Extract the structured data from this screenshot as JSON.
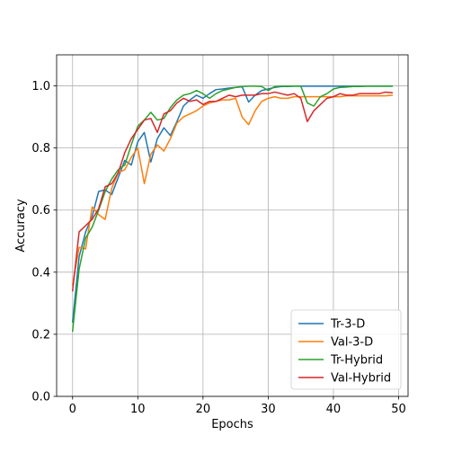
{
  "chart_data": {
    "type": "line",
    "title": "",
    "xlabel": "Epochs",
    "ylabel": "Accuracy",
    "xlim": [
      -2.45,
      51.45
    ],
    "ylim": [
      0.0,
      1.1
    ],
    "xticks": [
      "0",
      "10",
      "20",
      "30",
      "40",
      "50"
    ],
    "yticks": [
      "0.0",
      "0.2",
      "0.4",
      "0.6",
      "0.8",
      "1.0"
    ],
    "grid": true,
    "legend_position": "lower-right",
    "x": [
      0,
      1,
      2,
      3,
      4,
      5,
      6,
      7,
      8,
      9,
      10,
      11,
      12,
      13,
      14,
      15,
      16,
      17,
      18,
      19,
      20,
      21,
      22,
      23,
      24,
      25,
      26,
      27,
      28,
      29,
      30,
      31,
      32,
      33,
      34,
      35,
      36,
      37,
      38,
      39,
      40,
      41,
      42,
      43,
      44,
      45,
      46,
      47,
      48,
      49
    ],
    "series": [
      {
        "name": "Tr-3-D",
        "color": "#1f77b4",
        "values": [
          0.24,
          0.45,
          0.53,
          0.58,
          0.66,
          0.665,
          0.65,
          0.705,
          0.76,
          0.745,
          0.82,
          0.85,
          0.755,
          0.83,
          0.865,
          0.84,
          0.885,
          0.935,
          0.955,
          0.97,
          0.96,
          0.975,
          0.988,
          0.99,
          0.993,
          0.995,
          0.997,
          0.948,
          0.97,
          0.985,
          0.99,
          0.995,
          0.998,
          0.998,
          0.999,
          0.999,
          0.999,
          0.999,
          0.999,
          0.999,
          0.999,
          0.999,
          0.999,
          0.999,
          0.999,
          0.999,
          0.999,
          0.999,
          0.999,
          0.999
        ]
      },
      {
        "name": "Val-3-D",
        "color": "#ff7f0e",
        "values": [
          0.36,
          0.48,
          0.475,
          0.61,
          0.585,
          0.57,
          0.67,
          0.72,
          0.73,
          0.77,
          0.8,
          0.685,
          0.78,
          0.81,
          0.79,
          0.83,
          0.88,
          0.9,
          0.91,
          0.92,
          0.935,
          0.945,
          0.95,
          0.955,
          0.955,
          0.96,
          0.9,
          0.875,
          0.92,
          0.95,
          0.96,
          0.965,
          0.96,
          0.96,
          0.965,
          0.965,
          0.965,
          0.965,
          0.965,
          0.965,
          0.965,
          0.965,
          0.968,
          0.968,
          0.968,
          0.968,
          0.968,
          0.968,
          0.968,
          0.97
        ]
      },
      {
        "name": "Tr-Hybrid",
        "color": "#2ca02c",
        "values": [
          0.21,
          0.41,
          0.51,
          0.545,
          0.6,
          0.66,
          0.7,
          0.73,
          0.745,
          0.81,
          0.87,
          0.89,
          0.915,
          0.89,
          0.895,
          0.93,
          0.955,
          0.97,
          0.975,
          0.985,
          0.975,
          0.96,
          0.975,
          0.985,
          0.99,
          0.995,
          0.998,
          0.999,
          0.999,
          0.998,
          0.985,
          0.998,
          0.999,
          0.999,
          0.999,
          0.999,
          0.945,
          0.935,
          0.965,
          0.975,
          0.99,
          0.995,
          0.996,
          0.998,
          0.998,
          0.999,
          0.999,
          0.999,
          0.999,
          0.999
        ]
      },
      {
        "name": "Val-Hybrid",
        "color": "#d62728",
        "values": [
          0.34,
          0.53,
          0.55,
          0.57,
          0.605,
          0.675,
          0.685,
          0.72,
          0.785,
          0.83,
          0.86,
          0.89,
          0.895,
          0.85,
          0.91,
          0.92,
          0.945,
          0.96,
          0.95,
          0.955,
          0.94,
          0.95,
          0.95,
          0.96,
          0.97,
          0.965,
          0.97,
          0.97,
          0.97,
          0.975,
          0.975,
          0.98,
          0.975,
          0.97,
          0.975,
          0.96,
          0.885,
          0.92,
          0.94,
          0.96,
          0.965,
          0.975,
          0.97,
          0.97,
          0.975,
          0.975,
          0.975,
          0.975,
          0.98,
          0.978
        ]
      }
    ]
  }
}
